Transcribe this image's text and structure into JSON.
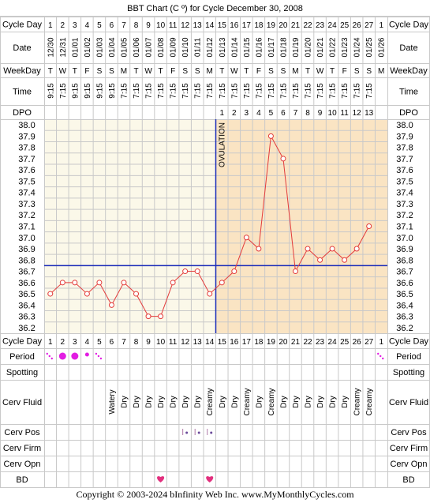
{
  "chart_data": {
    "type": "line",
    "title": "BBT Chart (C º) for Cycle December 30, 2008",
    "row_labels": {
      "cycle_day": "Cycle Day",
      "date": "Date",
      "weekday": "WeekDay",
      "time": "Time",
      "dpo": "DPO",
      "period": "Period",
      "spotting": "Spotting",
      "cerv_fluid": "Cerv Fluid",
      "cerv_pos": "Cerv Pos",
      "cerv_firm": "Cerv Firm",
      "cerv_opn": "Cerv Opn",
      "bd": "BD"
    },
    "cycle_days": [
      "1",
      "2",
      "3",
      "4",
      "5",
      "6",
      "7",
      "8",
      "9",
      "10",
      "11",
      "12",
      "13",
      "14",
      "15",
      "16",
      "17",
      "18",
      "19",
      "20",
      "21",
      "22",
      "23",
      "24",
      "25",
      "26",
      "27",
      "1"
    ],
    "dates": [
      "12/30",
      "12/31",
      "01/01",
      "01/02",
      "01/03",
      "01/04",
      "01/05",
      "01/06",
      "01/07",
      "01/08",
      "01/09",
      "01/10",
      "01/11",
      "01/12",
      "01/13",
      "01/14",
      "01/15",
      "01/16",
      "01/17",
      "01/18",
      "01/19",
      "01/20",
      "01/21",
      "01/22",
      "01/23",
      "01/24",
      "01/25",
      "01/26"
    ],
    "weekdays": [
      "T",
      "W",
      "T",
      "F",
      "S",
      "S",
      "M",
      "T",
      "W",
      "T",
      "F",
      "S",
      "S",
      "M",
      "T",
      "W",
      "T",
      "F",
      "S",
      "S",
      "M",
      "T",
      "W",
      "T",
      "F",
      "S",
      "S",
      "M"
    ],
    "times": [
      "9:15",
      "7:15",
      "9:15",
      "9:15",
      "9:15",
      "9:15",
      "7:15",
      "7:15",
      "7:15",
      "7:15",
      "7:15",
      "7:15",
      "7:15",
      "7:15",
      "7:15",
      "7:15",
      "7:15",
      "7:15",
      "7:15",
      "7:15",
      "7:15",
      "7:15",
      "7:15",
      "7:15",
      "7:15",
      "7:15",
      "7:15",
      ""
    ],
    "dpo": [
      "",
      "",
      "",
      "",
      "",
      "",
      "",
      "",
      "",
      "",
      "",
      "",
      "",
      "",
      "1",
      "2",
      "3",
      "4",
      "5",
      "6",
      "7",
      "8",
      "9",
      "10",
      "11",
      "12",
      "13",
      ""
    ],
    "y_ticks": [
      "38.0",
      "37.9",
      "37.8",
      "37.7",
      "37.6",
      "37.5",
      "37.4",
      "37.3",
      "37.2",
      "37.1",
      "37.0",
      "36.9",
      "36.8",
      "36.7",
      "36.6",
      "36.5",
      "36.4",
      "36.3",
      "36.2"
    ],
    "ylim": [
      36.2,
      38.0
    ],
    "series": [
      {
        "values": [
          36.5,
          36.6,
          36.6,
          36.5,
          36.6,
          36.4,
          36.6,
          36.5,
          36.3,
          36.3,
          36.6,
          36.7,
          36.7,
          36.5,
          36.6,
          36.7,
          37.0,
          36.9,
          37.9,
          37.7,
          36.7,
          36.9,
          36.8,
          36.9,
          36.8,
          36.9,
          37.1,
          null
        ]
      }
    ],
    "coverline": 36.75,
    "ovulation_day": 14,
    "ovulation_label": "OVULATION",
    "period": [
      "spot",
      "heavy",
      "heavy",
      "medium",
      "spot",
      "",
      "",
      "",
      "",
      "",
      "",
      "",
      "",
      "",
      "",
      "",
      "",
      "",
      "",
      "",
      "",
      "",
      "",
      "",
      "",
      "",
      "",
      "spot"
    ],
    "spotting": [
      "",
      "",
      "",
      "",
      "",
      "",
      "",
      "",
      "",
      "",
      "",
      "",
      "",
      "",
      "",
      "",
      "",
      "",
      "",
      "",
      "",
      "",
      "",
      "",
      "",
      "",
      "",
      ""
    ],
    "cerv_fluid": [
      "",
      "",
      "",
      "",
      "",
      "Watery",
      "Dry",
      "Dry",
      "Dry",
      "Dry",
      "Dry",
      "Dry",
      "Dry",
      "Creamy",
      "Dry",
      "Dry",
      "Creamy",
      "Dry",
      "Creamy",
      "Dry",
      "Dry",
      "Dry",
      "Dry",
      "Dry",
      "Dry",
      "Creamy",
      "Creamy",
      ""
    ],
    "cerv_pos": [
      "",
      "",
      "",
      "",
      "",
      "",
      "",
      "",
      "",
      "",
      "",
      "low",
      "low",
      "low",
      "",
      "",
      "",
      "",
      "",
      "",
      "",
      "",
      "",
      "",
      "",
      "",
      "",
      ""
    ],
    "bd": [
      10,
      14
    ],
    "colors": {
      "pre_ov_bg": "#fbf8e9",
      "post_ov_bg": "#fae4c3",
      "grid": "#c9c9c9",
      "line": "#e33b3b",
      "vertical": "#1b2cb9",
      "coverline": "#1b2cb9",
      "period": "#e21de2",
      "bd": "#e2307e"
    },
    "icons": {
      "period": "period-dot-icon",
      "bd": "heart-icon",
      "cerv_pos": "cervix-position-icon"
    }
  },
  "footer": {
    "copyright": "Copyright © 2003-2024 bInfinity Web Inc.     www.MyMonthlyCycles.com"
  }
}
